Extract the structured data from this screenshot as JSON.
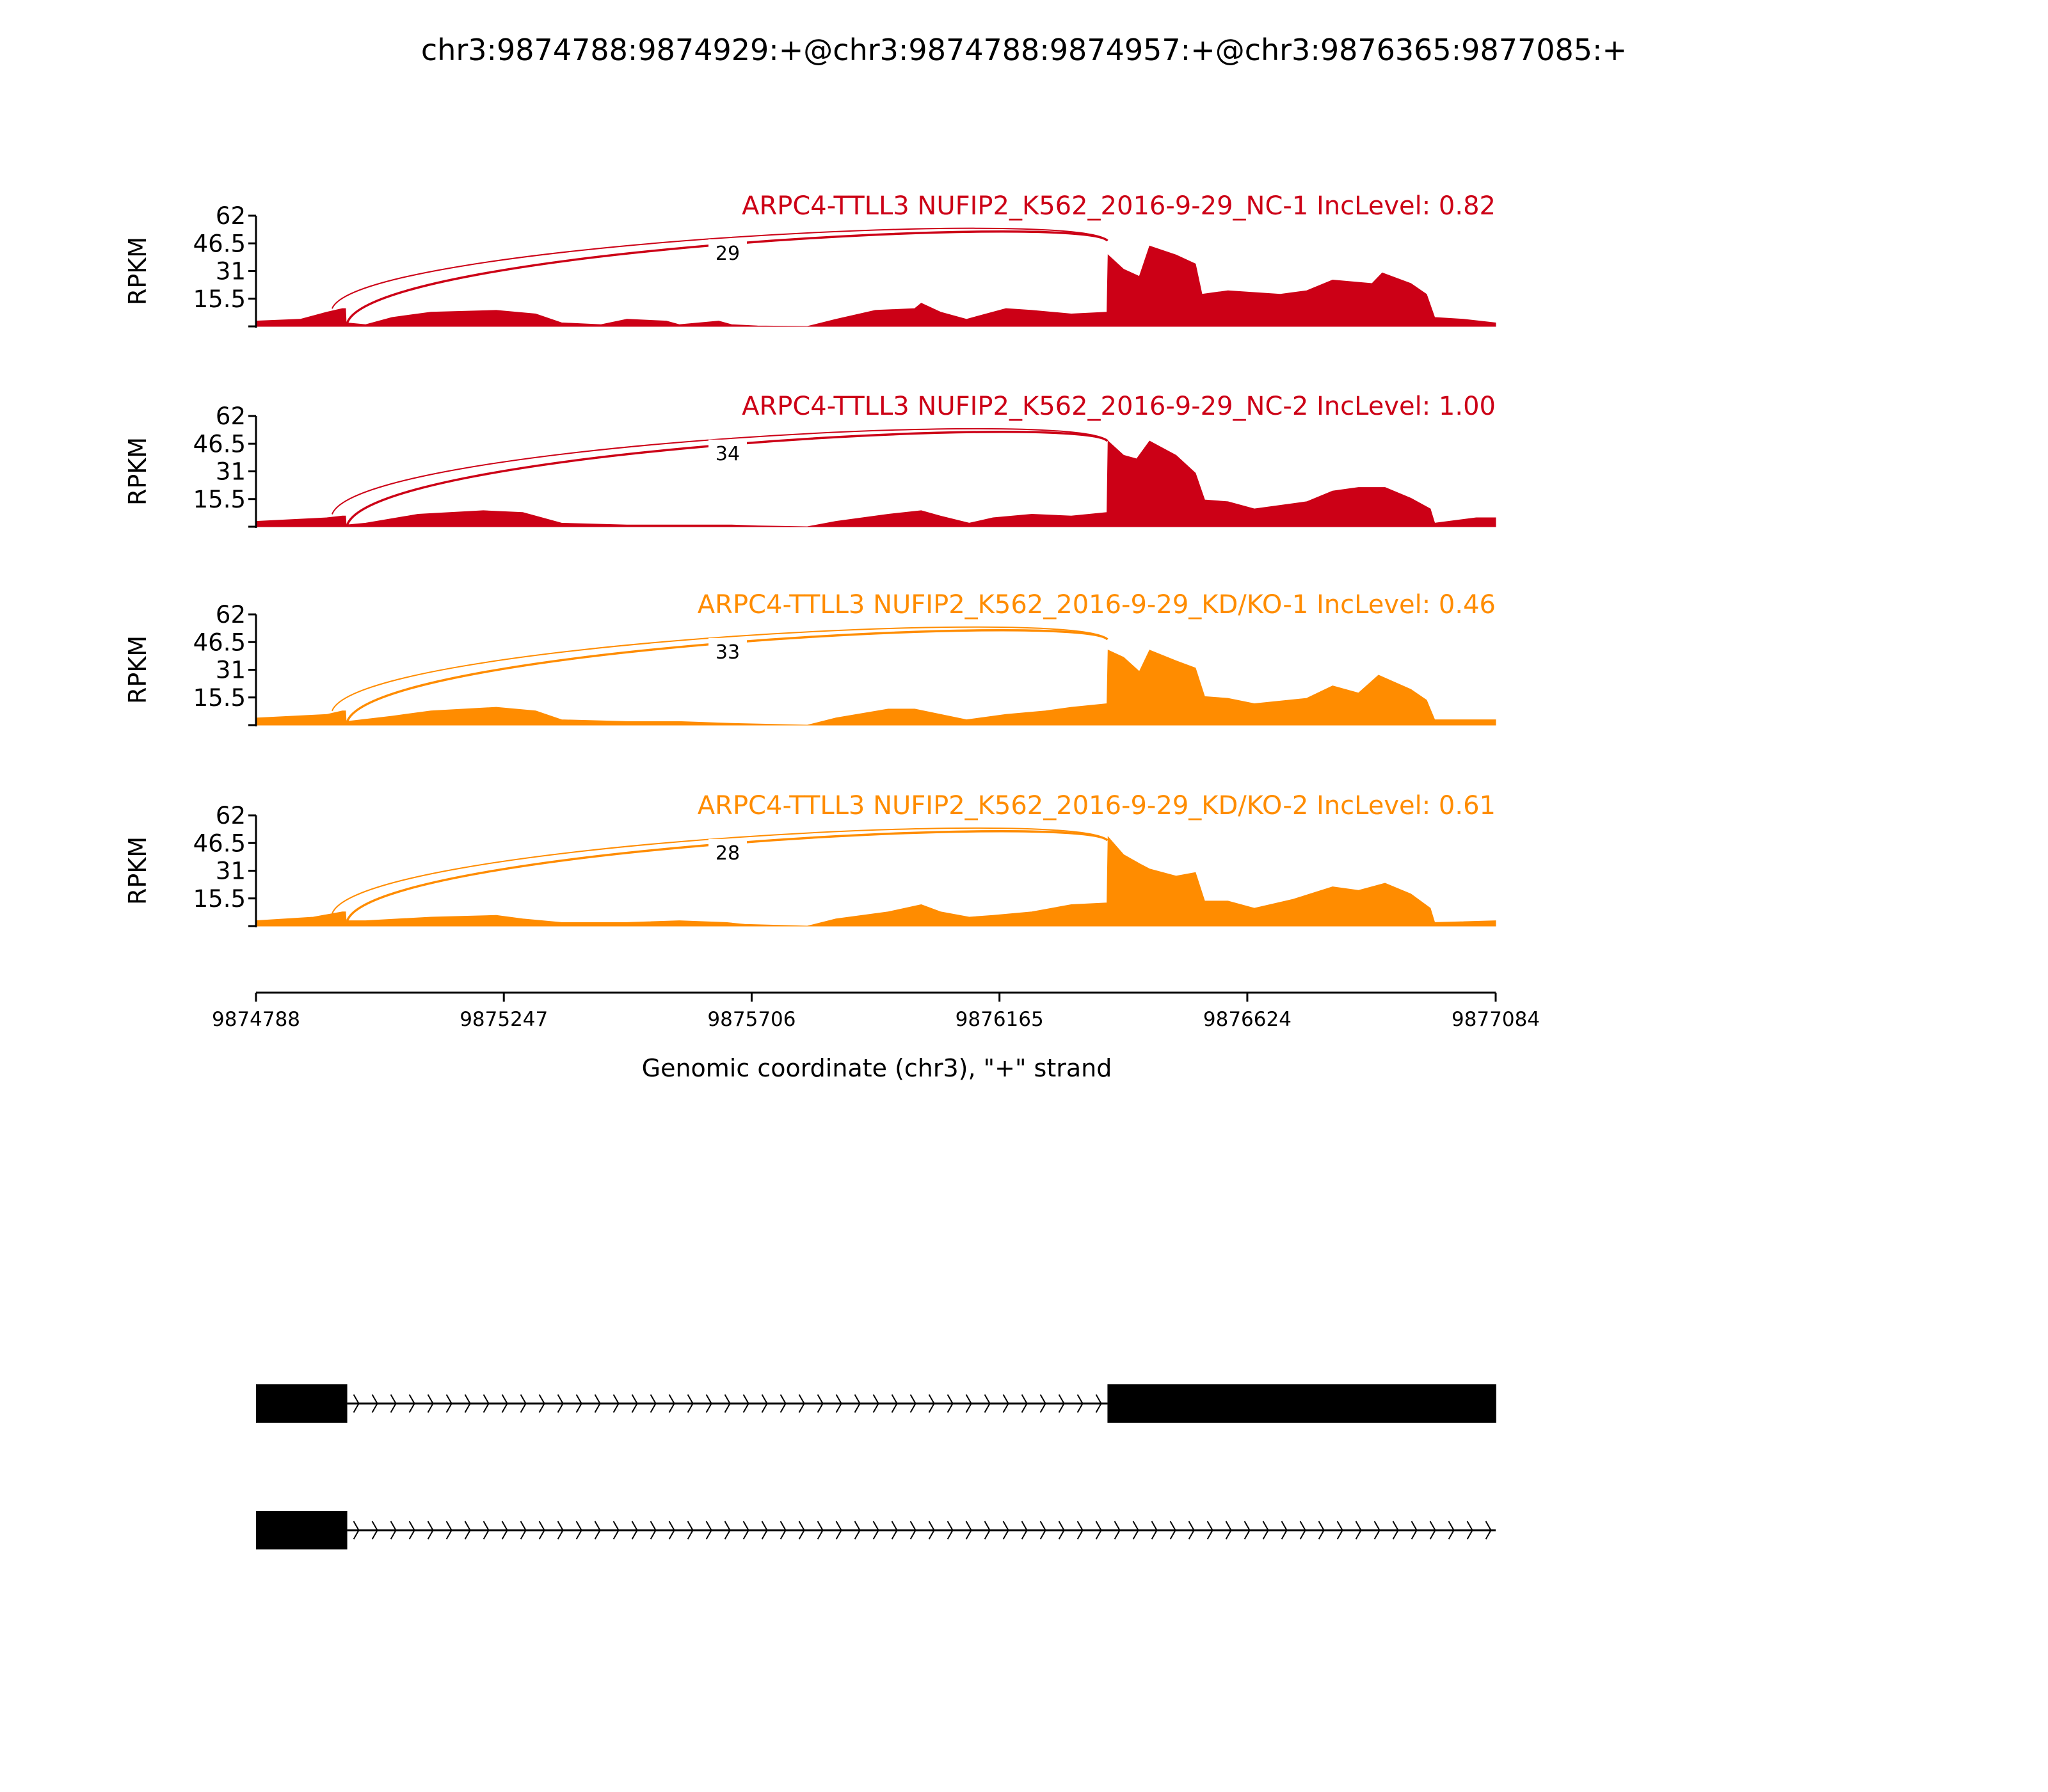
{
  "chart_data": {
    "type": "area",
    "title": "chr3:9874788:9874929:+@chr3:9874788:9874957:+@chr3:9876365:9877085:+",
    "xlabel": "Genomic coordinate (chr3), \"+\" strand",
    "ylabel": "RPKM",
    "xlim": [
      9874788,
      9877084
    ],
    "ylim": [
      0,
      62
    ],
    "xticks": [
      "9874788",
      "9875247",
      "9875706",
      "9876165",
      "9876624",
      "9877084"
    ],
    "xtick_values": [
      9874788,
      9875247,
      9875706,
      9876165,
      9876624,
      9877084
    ],
    "yticks": [
      "15.5",
      "31",
      "46.5",
      "62"
    ],
    "ytick_values": [
      15.5,
      31,
      46.5,
      62
    ],
    "coverage_offset_origin": 9874788,
    "series": [
      {
        "name": "ARPC4-TTLL3 NUFIP2_K562_2016-9-29_NC-1 IncLevel: 0.82",
        "color": "#CC0016",
        "junction_label": "29",
        "junctions": [
          [
            9874929,
            9876365
          ],
          [
            9874957,
            9876365
          ]
        ],
        "coverage": [
          [
            0,
            3
          ],
          [
            82,
            4
          ],
          [
            131,
            8
          ],
          [
            160,
            10
          ],
          [
            166,
            10
          ],
          [
            167,
            2
          ],
          [
            203,
            1
          ],
          [
            252,
            5
          ],
          [
            324,
            8
          ],
          [
            445,
            9
          ],
          [
            518,
            7
          ],
          [
            566,
            2
          ],
          [
            639,
            1
          ],
          [
            687,
            4
          ],
          [
            760,
            3
          ],
          [
            784,
            1
          ],
          [
            857,
            3
          ],
          [
            881,
            1
          ],
          [
            929,
            0.3
          ],
          [
            1021,
            0
          ],
          [
            1074,
            4
          ],
          [
            1147,
            9
          ],
          [
            1220,
            10
          ],
          [
            1232,
            13
          ],
          [
            1268,
            8
          ],
          [
            1316,
            4
          ],
          [
            1389,
            10
          ],
          [
            1437,
            9
          ],
          [
            1510,
            7
          ],
          [
            1576,
            8
          ],
          [
            1578,
            40
          ],
          [
            1607,
            32
          ],
          [
            1636,
            28
          ],
          [
            1655,
            45
          ],
          [
            1704,
            40
          ],
          [
            1740,
            35
          ],
          [
            1752,
            18
          ],
          [
            1800,
            20
          ],
          [
            1897,
            18
          ],
          [
            1946,
            20
          ],
          [
            1994,
            26
          ],
          [
            2067,
            24
          ],
          [
            2086,
            30
          ],
          [
            2139,
            24
          ],
          [
            2168,
            18
          ],
          [
            2183,
            5
          ],
          [
            2236,
            4
          ],
          [
            2296,
            2
          ]
        ]
      },
      {
        "name": "ARPC4-TTLL3 NUFIP2_K562_2016-9-29_NC-2 IncLevel: 1.00",
        "color": "#CC0016",
        "junction_label": "34",
        "junctions": [
          [
            9874929,
            9876365
          ],
          [
            9874957,
            9876365
          ]
        ],
        "coverage": [
          [
            0,
            3
          ],
          [
            131,
            5
          ],
          [
            160,
            6
          ],
          [
            166,
            6
          ],
          [
            167,
            1
          ],
          [
            203,
            2
          ],
          [
            300,
            7
          ],
          [
            421,
            9
          ],
          [
            494,
            8
          ],
          [
            566,
            2
          ],
          [
            687,
            1
          ],
          [
            881,
            1
          ],
          [
            929,
            0.5
          ],
          [
            1021,
            0
          ],
          [
            1074,
            3
          ],
          [
            1171,
            7
          ],
          [
            1232,
            9
          ],
          [
            1268,
            6
          ],
          [
            1321,
            2
          ],
          [
            1365,
            5
          ],
          [
            1437,
            7
          ],
          [
            1510,
            6
          ],
          [
            1576,
            8
          ],
          [
            1578,
            48
          ],
          [
            1607,
            40
          ],
          [
            1631,
            38
          ],
          [
            1655,
            48
          ],
          [
            1704,
            40
          ],
          [
            1740,
            30
          ],
          [
            1757,
            15
          ],
          [
            1800,
            14
          ],
          [
            1849,
            10
          ],
          [
            1946,
            14
          ],
          [
            1994,
            20
          ],
          [
            2042,
            22
          ],
          [
            2091,
            22
          ],
          [
            2139,
            16
          ],
          [
            2175,
            10
          ],
          [
            2183,
            2
          ],
          [
            2260,
            5
          ],
          [
            2296,
            5
          ]
        ]
      },
      {
        "name": "ARPC4-TTLL3 NUFIP2_K562_2016-9-29_KD/KO-1 IncLevel: 0.46",
        "color": "#FF8C00",
        "junction_label": "33",
        "junctions": [
          [
            9874929,
            9876365
          ],
          [
            9874957,
            9876365
          ]
        ],
        "coverage": [
          [
            0,
            4
          ],
          [
            131,
            6
          ],
          [
            160,
            8
          ],
          [
            166,
            8
          ],
          [
            167,
            2
          ],
          [
            252,
            5
          ],
          [
            324,
            8
          ],
          [
            445,
            10
          ],
          [
            518,
            8
          ],
          [
            566,
            3
          ],
          [
            687,
            2
          ],
          [
            784,
            2
          ],
          [
            881,
            1
          ],
          [
            1021,
            0
          ],
          [
            1074,
            4
          ],
          [
            1171,
            9
          ],
          [
            1220,
            9
          ],
          [
            1268,
            6
          ],
          [
            1316,
            3
          ],
          [
            1389,
            6
          ],
          [
            1462,
            8
          ],
          [
            1510,
            10
          ],
          [
            1576,
            12
          ],
          [
            1578,
            42
          ],
          [
            1607,
            38
          ],
          [
            1636,
            30
          ],
          [
            1655,
            42
          ],
          [
            1704,
            36
          ],
          [
            1740,
            32
          ],
          [
            1757,
            16
          ],
          [
            1800,
            15
          ],
          [
            1849,
            12
          ],
          [
            1946,
            15
          ],
          [
            1994,
            22
          ],
          [
            2042,
            18
          ],
          [
            2079,
            28
          ],
          [
            2139,
            20
          ],
          [
            2168,
            14
          ],
          [
            2183,
            3
          ],
          [
            2296,
            3
          ]
        ]
      },
      {
        "name": "ARPC4-TTLL3 NUFIP2_K562_2016-9-29_KD/KO-2 IncLevel: 0.61",
        "color": "#FF8C00",
        "junction_label": "28",
        "junctions": [
          [
            9874929,
            9876365
          ],
          [
            9874957,
            9876365
          ]
        ],
        "coverage": [
          [
            0,
            3
          ],
          [
            106,
            5
          ],
          [
            160,
            8
          ],
          [
            166,
            8
          ],
          [
            167,
            3
          ],
          [
            203,
            3
          ],
          [
            324,
            5
          ],
          [
            445,
            6
          ],
          [
            494,
            4
          ],
          [
            566,
            2
          ],
          [
            687,
            2
          ],
          [
            784,
            3
          ],
          [
            871,
            2
          ],
          [
            905,
            1
          ],
          [
            1021,
            0
          ],
          [
            1074,
            4
          ],
          [
            1171,
            8
          ],
          [
            1232,
            12
          ],
          [
            1268,
            8
          ],
          [
            1321,
            5
          ],
          [
            1365,
            6
          ],
          [
            1437,
            8
          ],
          [
            1510,
            12
          ],
          [
            1576,
            13
          ],
          [
            1578,
            50
          ],
          [
            1607,
            40
          ],
          [
            1636,
            35
          ],
          [
            1655,
            32
          ],
          [
            1704,
            28
          ],
          [
            1740,
            30
          ],
          [
            1757,
            14
          ],
          [
            1800,
            14
          ],
          [
            1849,
            10
          ],
          [
            1921,
            15
          ],
          [
            1994,
            22
          ],
          [
            2042,
            20
          ],
          [
            2091,
            24
          ],
          [
            2139,
            18
          ],
          [
            2175,
            10
          ],
          [
            2183,
            2
          ],
          [
            2296,
            3
          ]
        ]
      }
    ],
    "transcripts": [
      {
        "exons": [
          [
            9874788,
            9874957
          ],
          [
            9876365,
            9877085
          ]
        ]
      },
      {
        "exons": [
          [
            9874788,
            9874957
          ]
        ],
        "intron_end": 9877084
      }
    ]
  }
}
